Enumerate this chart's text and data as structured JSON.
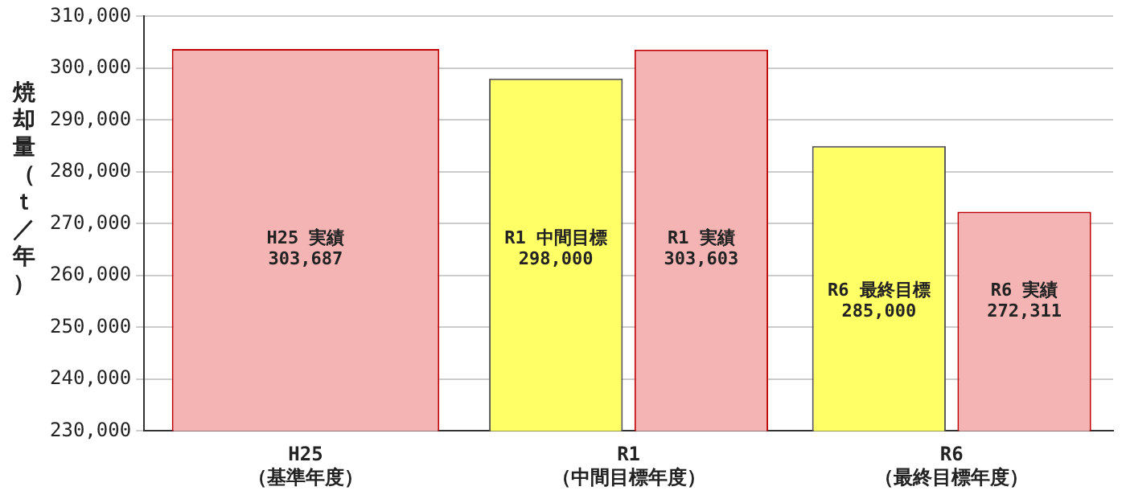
{
  "chart_data": {
    "type": "bar",
    "ylabel": "焼却量（ｔ／年）",
    "categories": [
      "H25\n（基準年度）",
      "R1\n（中間目標年度）",
      "R6\n（最終目標年度）"
    ],
    "series": [
      {
        "color": "#ffff66",
        "values": [
          null,
          298000,
          285000
        ],
        "value_labels": [
          null,
          "R1 中間目標\n298,000",
          "R6 最終目標\n285,000"
        ]
      },
      {
        "color": "#f4b4b4",
        "values": [
          303687,
          303603,
          272311
        ],
        "value_labels": [
          "H25 実績\n303,687",
          "R1 実績\n303,603",
          "R6 実績\n272,311"
        ]
      }
    ],
    "ylim": [
      230000,
      310000
    ],
    "yticks": [
      {
        "value": 230000,
        "label": "230,000"
      },
      {
        "value": 240000,
        "label": "240,000"
      },
      {
        "value": 250000,
        "label": "250,000"
      },
      {
        "value": 260000,
        "label": "260,000"
      },
      {
        "value": 270000,
        "label": "270,000"
      },
      {
        "value": 280000,
        "label": "280,000"
      },
      {
        "value": 290000,
        "label": "290,000"
      },
      {
        "value": 300000,
        "label": "300,000"
      },
      {
        "value": 310000,
        "label": "310,000"
      }
    ],
    "grid": "y",
    "legend": false
  }
}
